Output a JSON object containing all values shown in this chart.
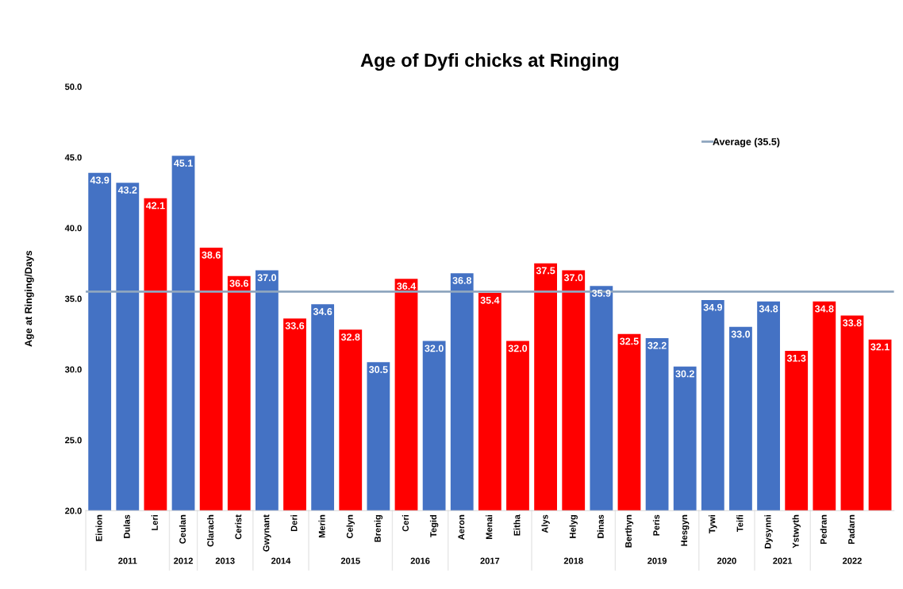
{
  "chart_data": {
    "type": "bar",
    "title": "Age of Dyfi chicks at Ringing",
    "ylabel": "Age at Ringing/Days",
    "categories": [
      "Einion",
      "Dulas",
      "Leri",
      "Ceulan",
      "Clarach",
      "Cerist",
      "Gwynant",
      "Deri",
      "Merin",
      "Celyn",
      "Brenig",
      "Ceri",
      "Tegid",
      "Aeron",
      "Menai",
      "Eitha",
      "Alys",
      "Helyg",
      "Dinas",
      "Berthyn",
      "Peris",
      "Hesgyn",
      "Tywi",
      "Teifi",
      "Dysynni",
      "Ystwyth",
      "Pedran",
      "Padarn",
      null
    ],
    "values": [
      43.9,
      43.2,
      42.1,
      45.1,
      38.6,
      36.6,
      37.0,
      33.6,
      34.6,
      32.8,
      30.5,
      36.4,
      32.0,
      36.8,
      35.4,
      32.0,
      37.5,
      37.0,
      35.9,
      32.5,
      32.2,
      30.2,
      34.9,
      33.0,
      34.8,
      31.3,
      34.8,
      33.8,
      32.1
    ],
    "colors": [
      "#4472c4",
      "#4472c4",
      "#ff0000",
      "#4472c4",
      "#ff0000",
      "#ff0000",
      "#4472c4",
      "#ff0000",
      "#4472c4",
      "#ff0000",
      "#4472c4",
      "#ff0000",
      "#4472c4",
      "#4472c4",
      "#ff0000",
      "#ff0000",
      "#ff0000",
      "#ff0000",
      "#4472c4",
      "#ff0000",
      "#4472c4",
      "#4472c4",
      "#4472c4",
      "#4472c4",
      "#4472c4",
      "#ff0000",
      "#ff0000",
      "#ff0000",
      "#ff0000"
    ],
    "value_labels": [
      "43.9",
      "43.2",
      "42.1",
      "45.1",
      "38.6",
      "36.6",
      "37.0",
      "33.6",
      "34.6",
      "32.8",
      "30.5",
      "36.4",
      "32.0",
      "36.8",
      "35.4",
      "32.0",
      "37.5",
      "37.0",
      "35.9",
      "32.5",
      "32.2",
      "30.2",
      "34.9",
      "33.0",
      "34.8",
      "31.3",
      "34.8",
      "33.8",
      "32.1"
    ],
    "ylim": [
      20,
      50
    ],
    "yticks": [
      {
        "value": 20,
        "label": "20.0"
      },
      {
        "value": 25,
        "label": "25.0"
      },
      {
        "value": 30,
        "label": "30.0"
      },
      {
        "value": 35,
        "label": "35.0"
      },
      {
        "value": 40,
        "label": "40.0"
      },
      {
        "value": 45,
        "label": "45.0"
      },
      {
        "value": 50,
        "label": "50.0"
      }
    ],
    "ref_lines": [
      {
        "axis": "y",
        "value": 35.5,
        "label": "Average (35.5)",
        "color": "#8fa6bf"
      }
    ],
    "legend": "top right",
    "grid": false,
    "annotations": [
      "2011",
      "2012",
      "2013",
      "2014",
      "2015",
      "2016",
      "2017",
      "2018",
      "2019",
      "2020",
      "2021",
      "2022"
    ]
  }
}
